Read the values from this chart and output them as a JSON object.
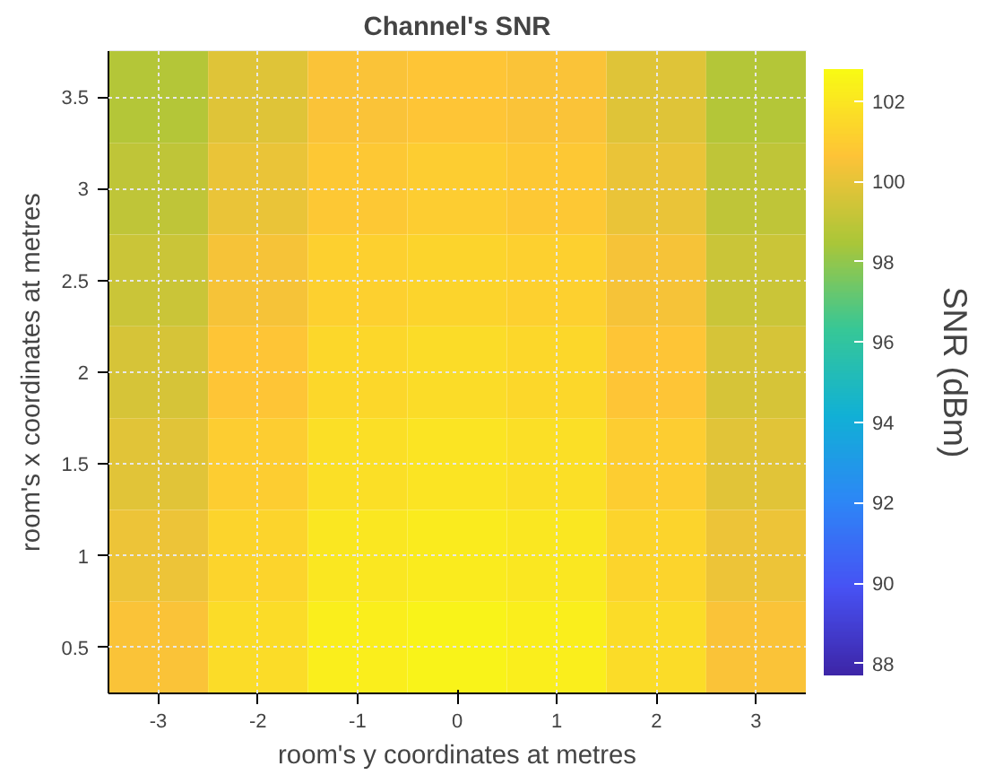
{
  "chart_data": {
    "type": "heatmap",
    "title": "Channel's SNR",
    "xlabel": "room's y coordinates at metres",
    "ylabel": "room's x coordinates at metres",
    "clabel": "SNR (dBm)",
    "categories": [
      "-3",
      "-2",
      "-1",
      "0",
      "1",
      "2",
      "3"
    ],
    "y_categories": [
      "3.5",
      "3",
      "2.5",
      "2",
      "1.5",
      "1",
      "0.5"
    ],
    "clim": [
      87.7,
      102.8
    ],
    "cticks": [
      88,
      90,
      92,
      94,
      96,
      98,
      100,
      102
    ],
    "grid": true,
    "cells": [
      [
        98.7,
        99.8,
        100.5,
        100.7,
        100.5,
        99.8,
        98.7
      ],
      [
        99.0,
        100.1,
        100.8,
        101.0,
        100.8,
        100.1,
        99.0
      ],
      [
        99.3,
        100.4,
        101.1,
        101.3,
        101.1,
        100.4,
        99.3
      ],
      [
        99.6,
        100.7,
        101.4,
        101.6,
        101.4,
        100.7,
        99.6
      ],
      [
        99.9,
        101.0,
        101.7,
        101.9,
        101.7,
        101.0,
        99.9
      ],
      [
        100.2,
        101.3,
        102.0,
        102.2,
        102.0,
        101.3,
        100.2
      ],
      [
        100.5,
        101.6,
        102.3,
        102.5,
        102.3,
        101.6,
        100.5
      ]
    ]
  }
}
